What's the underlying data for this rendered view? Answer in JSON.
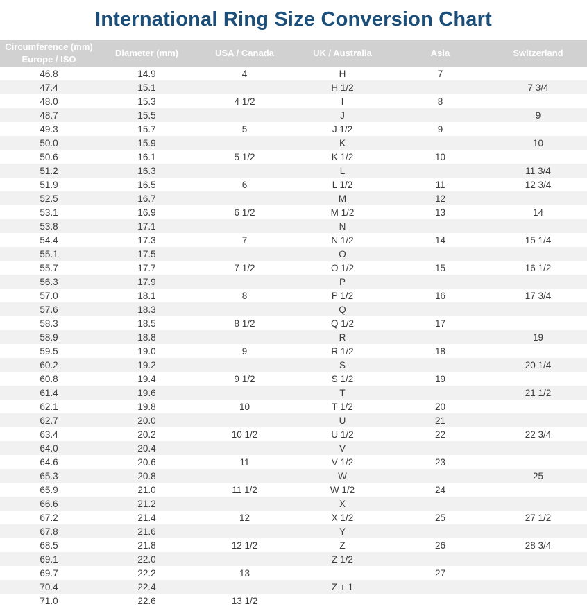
{
  "title": "International Ring Size Conversion Chart",
  "colors": {
    "title_text": "#1b4e79",
    "header_bg": "#d1d1d1",
    "header_text": "#ffffff",
    "row_alt_bg": "#f1f1f1",
    "row_bg": "#ffffff",
    "cell_text": "#3c3c3c"
  },
  "chart_data": {
    "type": "table",
    "title": "International Ring Size Conversion Chart",
    "columns": [
      [
        "Circumference (mm)",
        "Europe / ISO"
      ],
      [
        "Diameter (mm)"
      ],
      [
        "USA / Canada"
      ],
      [
        "UK / Australia"
      ],
      [
        "Asia"
      ],
      [
        "Switzerland"
      ]
    ],
    "rows": [
      [
        "46.8",
        "14.9",
        "4",
        "H",
        "7",
        ""
      ],
      [
        "47.4",
        "15.1",
        "",
        "H 1/2",
        "",
        "7 3/4"
      ],
      [
        "48.0",
        "15.3",
        "4 1/2",
        "I",
        "8",
        ""
      ],
      [
        "48.7",
        "15.5",
        "",
        "J",
        "",
        "9"
      ],
      [
        "49.3",
        "15.7",
        "5",
        "J 1/2",
        "9",
        ""
      ],
      [
        "50.0",
        "15.9",
        "",
        "K",
        "",
        "10"
      ],
      [
        "50.6",
        "16.1",
        "5 1/2",
        "K 1/2",
        "10",
        ""
      ],
      [
        "51.2",
        "16.3",
        "",
        "L",
        "",
        "11 3/4"
      ],
      [
        "51.9",
        "16.5",
        "6",
        "L 1/2",
        "11",
        "12 3/4"
      ],
      [
        "52.5",
        "16.7",
        "",
        "M",
        "12",
        ""
      ],
      [
        "53.1",
        "16.9",
        "6 1/2",
        "M 1/2",
        "13",
        "14"
      ],
      [
        "53.8",
        "17.1",
        "",
        "N",
        "",
        ""
      ],
      [
        "54.4",
        "17.3",
        "7",
        "N 1/2",
        "14",
        "15 1/4"
      ],
      [
        "55.1",
        "17.5",
        "",
        "O",
        "",
        ""
      ],
      [
        "55.7",
        "17.7",
        "7 1/2",
        "O 1/2",
        "15",
        "16 1/2"
      ],
      [
        "56.3",
        "17.9",
        "",
        "P",
        "",
        ""
      ],
      [
        "57.0",
        "18.1",
        "8",
        "P 1/2",
        "16",
        "17 3/4"
      ],
      [
        "57.6",
        "18.3",
        "",
        "Q",
        "",
        ""
      ],
      [
        "58.3",
        "18.5",
        "8 1/2",
        "Q 1/2",
        "17",
        ""
      ],
      [
        "58.9",
        "18.8",
        "",
        "R",
        "",
        "19"
      ],
      [
        "59.5",
        "19.0",
        "9",
        "R 1/2",
        "18",
        ""
      ],
      [
        "60.2",
        "19.2",
        "",
        "S",
        "",
        "20 1/4"
      ],
      [
        "60.8",
        "19.4",
        "9 1/2",
        "S 1/2",
        "19",
        ""
      ],
      [
        "61.4",
        "19.6",
        "",
        "T",
        "",
        "21 1/2"
      ],
      [
        "62.1",
        "19.8",
        "10",
        "T 1/2",
        "20",
        ""
      ],
      [
        "62.7",
        "20.0",
        "",
        "U",
        "21",
        ""
      ],
      [
        "63.4",
        "20.2",
        "10 1/2",
        "U 1/2",
        "22",
        "22 3/4"
      ],
      [
        "64.0",
        "20.4",
        "",
        "V",
        "",
        ""
      ],
      [
        "64.6",
        "20.6",
        "11",
        "V 1/2",
        "23",
        ""
      ],
      [
        "65.3",
        "20.8",
        "",
        "W",
        "",
        "25"
      ],
      [
        "65.9",
        "21.0",
        "11 1/2",
        "W 1/2",
        "24",
        ""
      ],
      [
        "66.6",
        "21.2",
        "",
        "X",
        "",
        ""
      ],
      [
        "67.2",
        "21.4",
        "12",
        "X 1/2",
        "25",
        "27 1/2"
      ],
      [
        "67.8",
        "21.6",
        "",
        "Y",
        "",
        ""
      ],
      [
        "68.5",
        "21.8",
        "12 1/2",
        "Z",
        "26",
        "28 3/4"
      ],
      [
        "69.1",
        "22.0",
        "",
        "Z 1/2",
        "",
        ""
      ],
      [
        "69.7",
        "22.2",
        "13",
        "",
        "27",
        ""
      ],
      [
        "70.4",
        "22.4",
        "",
        "Z + 1",
        "",
        ""
      ],
      [
        "71.0",
        "22.6",
        "13 1/2",
        "",
        "",
        ""
      ]
    ]
  }
}
